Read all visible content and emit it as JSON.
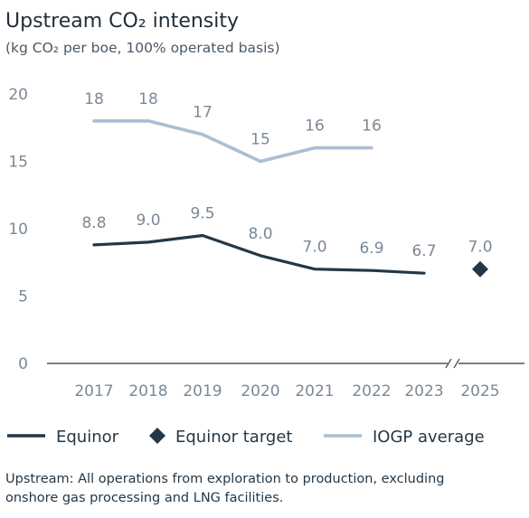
{
  "chart_data": {
    "type": "line",
    "title": "Upstream CO₂ intensity",
    "subtitle": "(kg CO₂ per boe, 100% operated basis)",
    "categories": [
      "2017",
      "2018",
      "2019",
      "2020",
      "2021",
      "2022",
      "2023",
      "2025"
    ],
    "ylim": [
      0,
      20
    ],
    "yticks": [
      0,
      5,
      10,
      15,
      20
    ],
    "grid": false,
    "axis_break_between": [
      "2023",
      "2025"
    ],
    "legend_position": "bottom",
    "series": [
      {
        "name": "Equinor",
        "kind": "line",
        "color": "#243746",
        "x": [
          "2017",
          "2018",
          "2019",
          "2020",
          "2021",
          "2022",
          "2023"
        ],
        "values": [
          8.8,
          9.0,
          9.5,
          8.0,
          7.0,
          6.9,
          6.7
        ],
        "labels": [
          "8.8",
          "9.0",
          "9.5",
          "8.0",
          "7.0",
          "6.9",
          "6.7"
        ]
      },
      {
        "name": "Equinor target",
        "kind": "diamond",
        "color": "#243746",
        "x": [
          "2025"
        ],
        "values": [
          7.0
        ],
        "labels": [
          "7.0"
        ]
      },
      {
        "name": "IOGP average",
        "kind": "line",
        "color": "#a9bfd4",
        "x": [
          "2017",
          "2018",
          "2019",
          "2020",
          "2021",
          "2022"
        ],
        "values": [
          18,
          18,
          17,
          15,
          16,
          16
        ],
        "labels": [
          "18",
          "18",
          "17",
          "15",
          "16",
          "16"
        ]
      }
    ],
    "footnote": "Upstream: All operations from exploration to production, excluding onshore gas processing and LNG facilities."
  }
}
